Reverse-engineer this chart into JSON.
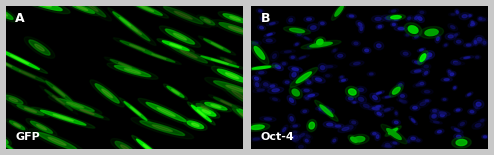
{
  "fig_width": 4.94,
  "fig_height": 1.55,
  "dpi": 100,
  "panel_A_label": "A",
  "panel_B_label": "B",
  "panel_A_text": "GFP",
  "panel_B_text": "Oct-4",
  "label_color": "white",
  "background_color": "black",
  "border_color": "#c8c8c8",
  "seed_A": 42,
  "seed_B": 77,
  "n_cells_A": 55,
  "n_blue_dots_B": 180,
  "n_green_spots_B": 22
}
